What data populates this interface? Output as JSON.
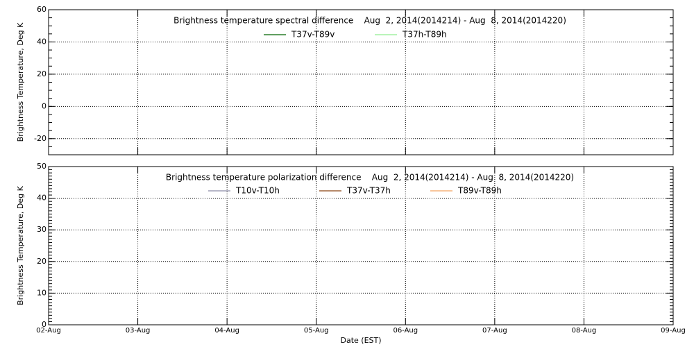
{
  "chart_data": [
    {
      "type": "line",
      "title": "Brightness temperature spectral difference    Aug  2, 2014(2014214) - Aug  8, 2014(2014220)",
      "y_label": "Brightness Temperature, Deg K",
      "categories": [
        null,
        null,
        null,
        null,
        null,
        null,
        null,
        null
      ],
      "series": [
        {
          "name": "T37v-T89v",
          "color": "#006400",
          "values": [
            null,
            null,
            null,
            null,
            null,
            null,
            null,
            null
          ]
        },
        {
          "name": "T37h-T89h",
          "color": "#90ee90",
          "values": [
            null,
            null,
            null,
            null,
            null,
            null,
            null,
            null
          ]
        }
      ],
      "ylim": [
        -30,
        60
      ],
      "yticks": [
        -20,
        0,
        20,
        40,
        60
      ],
      "grid": true
    },
    {
      "type": "line",
      "title": "Brightness temperature polarization difference    Aug  2, 2014(2014214) - Aug  8, 2014(2014220)",
      "y_label": "Brightness Temperature, Deg K",
      "x_label": "Date (EST)",
      "categories": [
        "02-Aug",
        "03-Aug",
        "04-Aug",
        "05-Aug",
        "06-Aug",
        "07-Aug",
        "08-Aug",
        "09-Aug"
      ],
      "series": [
        {
          "name": "T10v-T10h",
          "color": "#8c8ca8",
          "values": [
            null,
            null,
            null,
            null,
            null,
            null,
            null,
            null
          ]
        },
        {
          "name": "T37v-T37h",
          "color": "#8b4513",
          "values": [
            null,
            null,
            null,
            null,
            null,
            null,
            null,
            null
          ]
        },
        {
          "name": "T89v-T89h",
          "color": "#f4a460",
          "values": [
            null,
            null,
            null,
            null,
            null,
            null,
            null,
            null
          ]
        }
      ],
      "ylim": [
        0,
        50
      ],
      "yticks": [
        0,
        10,
        20,
        30,
        40,
        50
      ],
      "grid": true
    }
  ]
}
